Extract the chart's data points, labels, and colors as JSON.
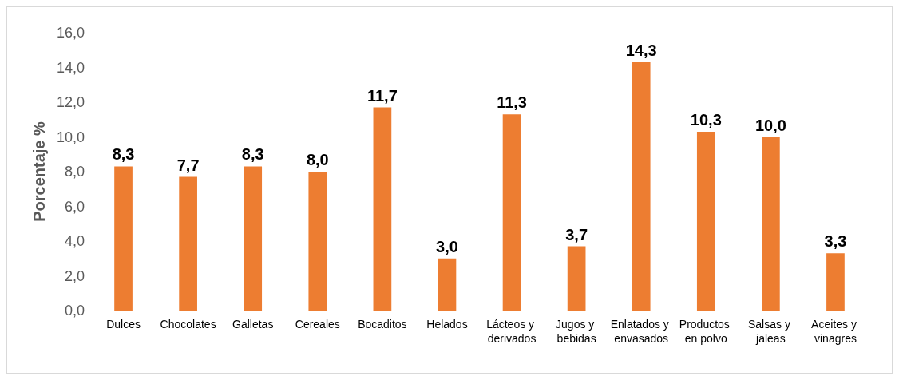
{
  "chart_data": {
    "type": "bar",
    "ylabel": "Porcentaje %",
    "categories": [
      "Dulces",
      "Chocolates",
      "Galletas",
      "Cereales",
      "Bocaditos",
      "Helados",
      "Lácteos y derivados",
      "Jugos y bebidas",
      "Enlatados y envasados",
      "Productos en polvo",
      "Salsas y jaleas",
      "Aceites y vinagres"
    ],
    "values": [
      8.3,
      7.7,
      8.3,
      8.0,
      11.7,
      3.0,
      11.3,
      3.7,
      14.3,
      10.3,
      10.0,
      3.3
    ],
    "value_labels": [
      "8,3",
      "7,7",
      "8,3",
      "8,0",
      "11,7",
      "3,0",
      "11,3",
      "3,7",
      "14,3",
      "10,3",
      "10,0",
      "3,3"
    ],
    "color": "#ed7d31",
    "ylim": [
      0,
      16
    ],
    "yticks": [
      {
        "value": 0,
        "label": "0,0"
      },
      {
        "value": 2,
        "label": "2,0"
      },
      {
        "value": 4,
        "label": "4,0"
      },
      {
        "value": 6,
        "label": "6,0"
      },
      {
        "value": 8,
        "label": "8,0"
      },
      {
        "value": 10,
        "label": "10,0"
      },
      {
        "value": 12,
        "label": "12,0"
      },
      {
        "value": 14,
        "label": "14,0"
      },
      {
        "value": 16,
        "label": "16,0"
      }
    ],
    "grid": false
  }
}
